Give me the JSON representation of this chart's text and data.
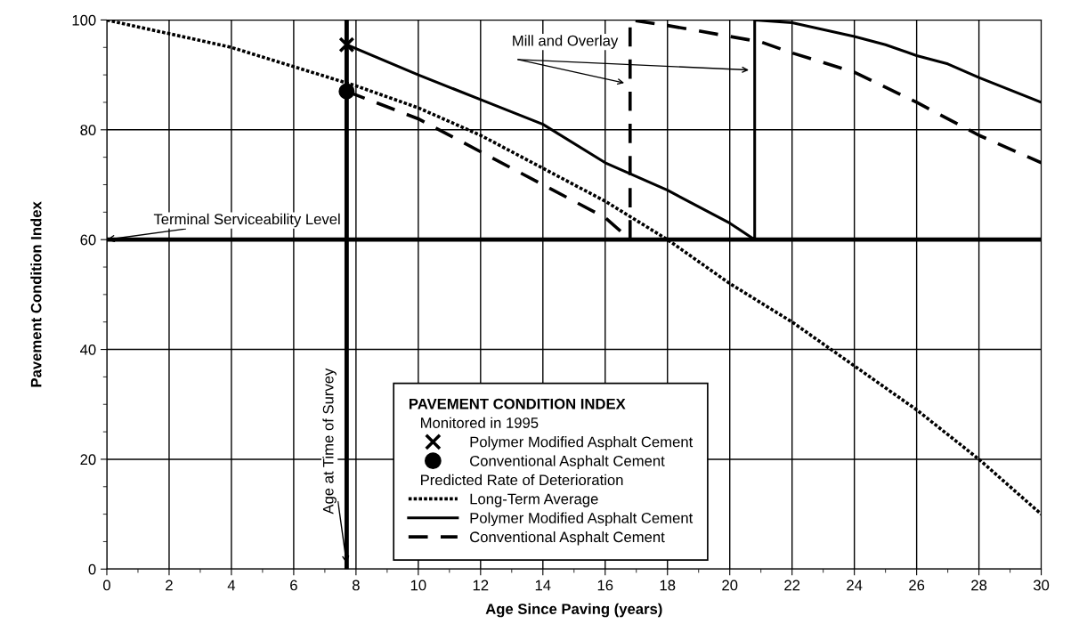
{
  "chart_data": {
    "type": "line",
    "xlabel": "Age Since Paving (years)",
    "ylabel": "Pavement Condition Index",
    "legend_title": "PAVEMENT CONDITION INDEX",
    "annotations": [
      "Mill and Overlay",
      "Monitored in 1995",
      "Predicted Rate of Deterioration"
    ],
    "xlim": [
      0,
      30
    ],
    "xticks": [
      0,
      2,
      4,
      6,
      8,
      10,
      12,
      14,
      16,
      18,
      20,
      22,
      24,
      26,
      28,
      30
    ],
    "ylim": [
      0,
      100
    ],
    "yticks": [
      0,
      20,
      40,
      60,
      80,
      100
    ],
    "grid": true,
    "legend": "bottom",
    "ref_lines": [
      {
        "axis": "y",
        "value": 60,
        "label": "Terminal Serviceability Level",
        "color": "#000000"
      },
      {
        "axis": "x",
        "value": 7.7,
        "label": "Age at Time of Survey",
        "color": "#000000"
      }
    ],
    "series": [
      {
        "name": "Polymer Modified Asphalt Cement",
        "type": "scatter",
        "marker": "cross",
        "color": "#000000",
        "x": [
          7.7
        ],
        "values": [
          95.5
        ]
      },
      {
        "name": "Conventional Asphalt Cement",
        "type": "scatter",
        "marker": "circle",
        "color": "#000000",
        "x": [
          7.7
        ],
        "values": [
          87
        ]
      },
      {
        "name": "Long-Term Average",
        "line_style": "dotted",
        "color": "#000000",
        "x": [
          0,
          2,
          4,
          6,
          8,
          10,
          12,
          14,
          16,
          18,
          20,
          22,
          24,
          26,
          28,
          30
        ],
        "values": [
          100,
          97.5,
          95,
          91.5,
          88,
          84,
          79,
          73,
          67,
          60,
          52,
          45,
          37,
          29,
          20,
          10
        ]
      },
      {
        "name": "Polymer Modified Asphalt Cement",
        "line_style": "solid",
        "color": "#000000",
        "x": [
          7.7,
          10,
          12,
          14,
          16,
          18,
          20,
          20.8,
          20.8,
          22,
          24,
          25,
          26,
          27,
          28,
          30
        ],
        "values": [
          95.5,
          90,
          85.5,
          81,
          74,
          69,
          63,
          60,
          100,
          99.5,
          97,
          95.5,
          93.5,
          92,
          89.5,
          85
        ]
      },
      {
        "name": "Conventional Asphalt Cement",
        "line_style": "dashed",
        "color": "#000000",
        "x": [
          7.7,
          10,
          12,
          14,
          16,
          16.8,
          16.8,
          18,
          20,
          21,
          22,
          24,
          26,
          28,
          30
        ],
        "values": [
          87,
          82,
          76,
          70,
          64,
          60,
          100,
          99,
          97,
          96,
          94,
          90.5,
          85,
          79,
          74
        ]
      }
    ]
  }
}
